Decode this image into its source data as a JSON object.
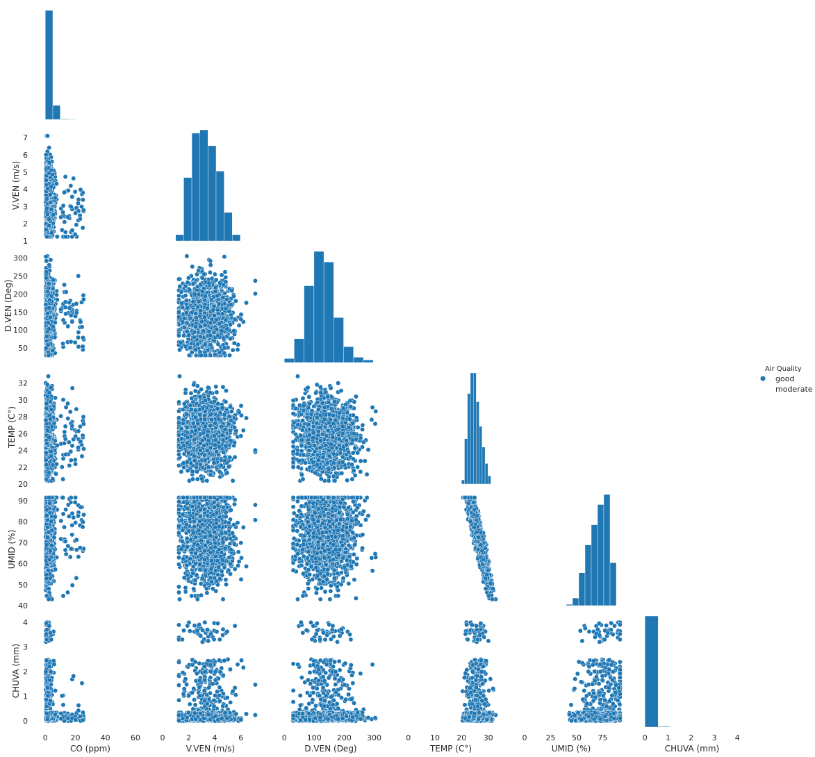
{
  "chart_data": {
    "type": "scatter",
    "subtype": "pairplot-lower-triangle",
    "variables": [
      "CO (ppm)",
      "V.VEN (m/s)",
      "D.VEN (Deg)",
      "TEMP (C°)",
      "UMID (%)",
      "CHUVA (mm)"
    ],
    "x_ticks": [
      [
        "0",
        "20",
        "40",
        "60"
      ],
      [
        "0",
        "2",
        "4",
        "6"
      ],
      [
        "0",
        "100",
        "200",
        "300"
      ],
      [
        "0",
        "10",
        "20",
        "30"
      ],
      [
        "0",
        "25",
        "50",
        "75"
      ],
      [
        "0",
        "1",
        "2",
        "3",
        "4"
      ]
    ],
    "x_tick_values": [
      [
        0,
        20,
        40,
        60
      ],
      [
        0,
        2,
        4,
        6
      ],
      [
        0,
        100,
        200,
        300
      ],
      [
        0,
        10,
        20,
        30
      ],
      [
        0,
        25,
        50,
        75
      ],
      [
        0,
        1,
        2,
        3,
        4
      ]
    ],
    "x_ranges": [
      [
        -1.5,
        67
      ],
      [
        0,
        7.4
      ],
      [
        -5,
        315
      ],
      [
        -2,
        34
      ],
      [
        -2,
        92
      ],
      [
        -0.1,
        4.2
      ]
    ],
    "y_ticks": [
      null,
      [
        "1",
        "2",
        "3",
        "4",
        "5",
        "6",
        "7"
      ],
      [
        "50",
        "100",
        "150",
        "200",
        "250",
        "300"
      ],
      [
        "20",
        "22",
        "24",
        "26",
        "28",
        "30",
        "32"
      ],
      [
        "40",
        "50",
        "60",
        "70",
        "80",
        "90"
      ],
      [
        "0",
        "1",
        "2",
        "3",
        "4"
      ]
    ],
    "y_tick_values": [
      null,
      [
        1,
        2,
        3,
        4,
        5,
        6,
        7
      ],
      [
        50,
        100,
        150,
        200,
        250,
        300
      ],
      [
        20,
        22,
        24,
        26,
        28,
        30,
        32
      ],
      [
        40,
        50,
        60,
        70,
        80,
        90
      ],
      [
        0,
        1,
        2,
        3,
        4
      ]
    ],
    "y_ranges": [
      null,
      [
        1,
        7.45
      ],
      [
        10,
        318
      ],
      [
        20,
        33.2
      ],
      [
        40,
        93
      ],
      [
        -0.25,
        4.25
      ]
    ],
    "ranges": [
      [
        0,
        26
      ],
      [
        1.2,
        7.2
      ],
      [
        25,
        310
      ],
      [
        20.3,
        33
      ],
      [
        42,
        92
      ],
      [
        0,
        4
      ]
    ],
    "centers": [
      2.5,
      3.4,
      140,
      25.9,
      76,
      0.1
    ],
    "histograms": [
      {
        "bins": [
          0,
          5,
          10,
          15,
          20
        ],
        "counts": [
          100,
          13,
          0.6,
          0.3
        ]
      },
      {
        "bins": [
          1,
          1.62,
          2.24,
          2.86,
          3.48,
          4.1,
          4.72,
          5.34,
          5.96
        ],
        "counts": [
          1,
          10,
          17,
          17.5,
          15,
          11,
          4.5,
          1
        ]
      },
      {
        "bins": [
          0,
          33,
          66,
          99,
          132,
          165,
          198,
          231,
          264,
          297
        ],
        "counts": [
          1.5,
          9,
          29,
          42,
          38,
          17,
          6,
          2,
          1
        ]
      },
      {
        "bins": [
          20,
          21.1,
          22.2,
          23.3,
          24.4,
          25.5,
          26.6,
          27.7,
          28.8,
          29.9,
          31
        ],
        "counts": [
          1,
          11,
          22,
          27,
          27,
          20,
          14,
          9,
          5,
          2
        ]
      },
      {
        "bins": [
          40,
          46,
          52,
          58,
          64,
          70,
          76,
          82,
          88
        ],
        "counts": [
          0.5,
          3,
          13,
          24,
          32,
          40,
          44,
          17
        ]
      },
      {
        "bins": [
          0,
          0.57,
          1.1
        ],
        "counts": [
          100,
          0.6
        ]
      }
    ],
    "series": [
      {
        "name": "good",
        "color": "#1f77b4"
      },
      {
        "name": "moderate",
        "color": "#ff7f0e"
      }
    ],
    "legend": {
      "title": "Air Quality",
      "entries": [
        "good",
        "moderate"
      ],
      "placement": "right"
    },
    "marker_color": "#1f77b4",
    "grid": false
  }
}
